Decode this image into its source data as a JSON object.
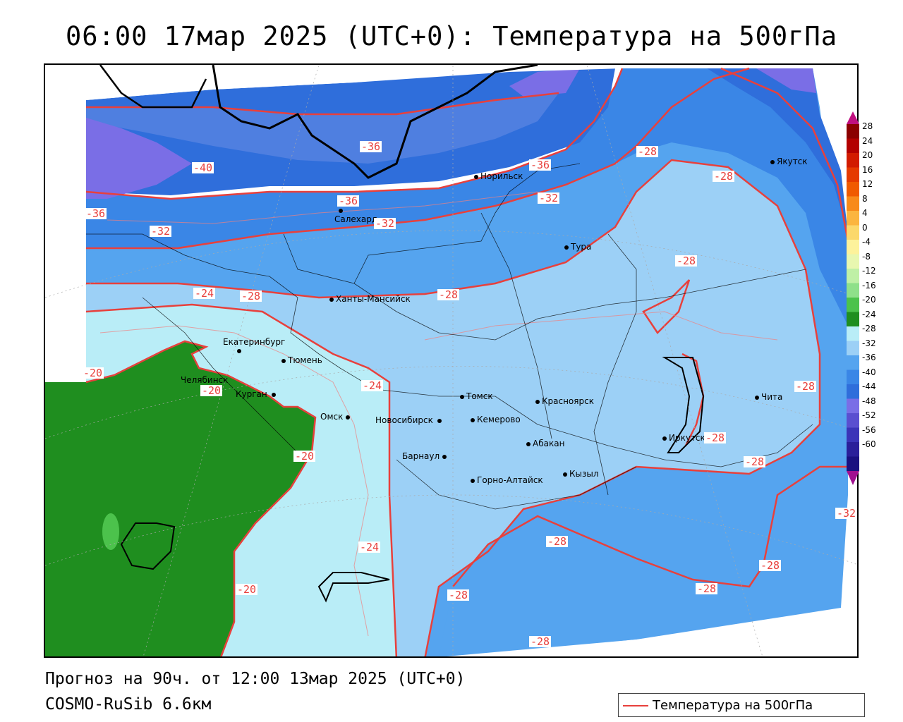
{
  "title": "06:00 17мар 2025 (UTC+0): Температура на 500гПа",
  "forecast_line": "Прогноз на 90ч. от 12:00 13мар 2025 (UTC+0)",
  "model_line": "COSMO-RuSib 6.6км",
  "legend": {
    "label": "Температура на 500гПа",
    "color": "#e8403c"
  },
  "colors": {
    "isoline": "#e8403c",
    "zone_minus44": "#7a6ee6",
    "zone_minus40": "#4f7fe0",
    "zone_minus36": "#2f6edb",
    "zone_minus32": "#3a86e6",
    "zone_minus28": "#55a4ef",
    "zone_minus24": "#9cd0f6",
    "zone_minus20": "#b9edf7",
    "zone_green": "#1f8e1f"
  },
  "cities": [
    {
      "name": "Якутск"
    },
    {
      "name": "Норильск"
    },
    {
      "name": "Салехард"
    },
    {
      "name": "Тура"
    },
    {
      "name": "Ханты-Мансийск"
    },
    {
      "name": "Екатеринбург"
    },
    {
      "name": "Тюмень"
    },
    {
      "name": "Челябинск"
    },
    {
      "name": "Курган"
    },
    {
      "name": "Омск"
    },
    {
      "name": "Новосибирск"
    },
    {
      "name": "Томск"
    },
    {
      "name": "Кемерово"
    },
    {
      "name": "Красноярск"
    },
    {
      "name": "Абакан"
    },
    {
      "name": "Барнаул"
    },
    {
      "name": "Горно-Алтайск"
    },
    {
      "name": "Кызыл"
    },
    {
      "name": "Иркутск"
    },
    {
      "name": "Чита"
    }
  ],
  "isolines": [
    "-40",
    "-36",
    "-36",
    "-36",
    "-36",
    "-32",
    "-32",
    "-32",
    "-28",
    "-28",
    "-28",
    "-28",
    "-28",
    "-24",
    "-24",
    "-24",
    "-20",
    "-20",
    "-20",
    "-20",
    "-28",
    "-28",
    "-28",
    "-28",
    "-28",
    "-28",
    "-28",
    "-28",
    "-32"
  ],
  "colorbar": {
    "ticks": [
      "28",
      "24",
      "20",
      "16",
      "12",
      "8",
      "4",
      "0",
      "-4",
      "-8",
      "-12",
      "-16",
      "-20",
      "-24",
      "-28",
      "-32",
      "-36",
      "-40",
      "-44",
      "-48",
      "-52",
      "-56",
      "-60"
    ],
    "colors": [
      "#8b0000",
      "#b30000",
      "#d21b00",
      "#e53a00",
      "#f05a00",
      "#f88a1a",
      "#fbb53f",
      "#fbd86b",
      "#fdf29b",
      "#e8f7b0",
      "#bff0a6",
      "#8fe08a",
      "#4cc24c",
      "#1f8e1f",
      "#b9edf7",
      "#9cd0f6",
      "#55a4ef",
      "#3a86e6",
      "#2f6edb",
      "#7a6ee6",
      "#5a4fd0",
      "#3b34b8",
      "#2a1f9a",
      "#1a1080"
    ]
  }
}
